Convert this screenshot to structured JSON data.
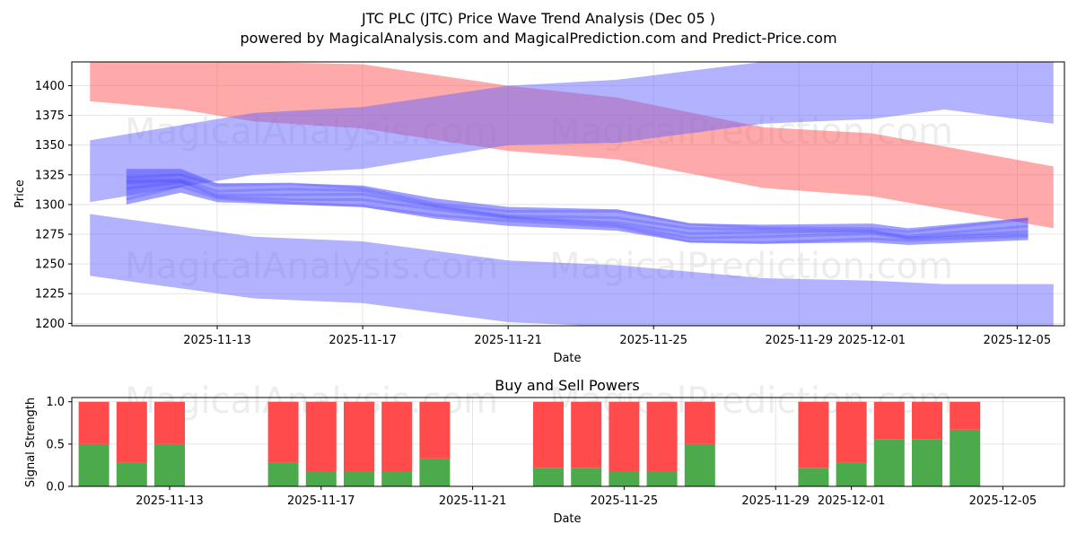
{
  "chart_data": [
    {
      "type": "area",
      "title": "JTC PLC (JTC) Price Wave Trend Analysis (Dec 05 )",
      "subtitle": "powered by MagicalAnalysis.com and MagicalPrediction.com and Predict-Price.com",
      "xlabel": "Date",
      "ylabel": "Price",
      "xlim": [
        "2025-11-09",
        "2025-12-06.3"
      ],
      "ylim": [
        1198,
        1420
      ],
      "x_ticks": [
        "2025-11-13",
        "2025-11-17",
        "2025-11-21",
        "2025-11-25",
        "2025-11-29",
        "2025-12-01",
        "2025-12-05"
      ],
      "y_ticks": [
        1200,
        1225,
        1250,
        1275,
        1300,
        1325,
        1350,
        1375,
        1400
      ],
      "grid": true,
      "watermarks": [
        "MagicalAnalysis.com",
        "MagicalPrediction.com",
        "MagicalAnalysis.com",
        "MagicalPrediction.com"
      ],
      "bands": [
        {
          "name": "red-downtrend",
          "color": "#ff5555",
          "opacity": 0.5,
          "x": [
            "2025-11-09.5",
            "2025-11-12",
            "2025-11-14",
            "2025-11-17",
            "2025-11-21",
            "2025-11-24",
            "2025-11-28",
            "2025-12-01",
            "2025-12-06"
          ],
          "upper": [
            1420,
            1420,
            1420,
            1418,
            1400,
            1390,
            1365,
            1360,
            1332
          ],
          "lower": [
            1387,
            1380,
            1370,
            1364,
            1345,
            1338,
            1314,
            1307,
            1280
          ]
        },
        {
          "name": "blue-upper-uptrend",
          "color": "#6666ff",
          "opacity": 0.5,
          "x": [
            "2025-11-09.5",
            "2025-11-14",
            "2025-11-17",
            "2025-11-21",
            "2025-11-24",
            "2025-11-28",
            "2025-12-01",
            "2025-12-03",
            "2025-12-06"
          ],
          "upper": [
            1354,
            1377,
            1382,
            1400,
            1405,
            1420,
            1420,
            1420,
            1420
          ],
          "lower": [
            1302,
            1325,
            1330,
            1350,
            1352,
            1368,
            1372,
            1380,
            1368
          ]
        },
        {
          "name": "blue-lower-downtrend",
          "color": "#6666ff",
          "opacity": 0.5,
          "x": [
            "2025-11-09.5",
            "2025-11-14",
            "2025-11-17",
            "2025-11-21",
            "2025-11-24",
            "2025-11-28",
            "2025-12-01",
            "2025-12-03",
            "2025-12-06"
          ],
          "upper": [
            1292,
            1273,
            1269,
            1253,
            1249,
            1238,
            1236,
            1233,
            1233
          ],
          "lower": [
            1240,
            1221,
            1217,
            1201,
            1197,
            1197,
            1197,
            1197,
            1197
          ]
        },
        {
          "name": "blue-core-wave",
          "color": "#5050ff",
          "opacity": 0.55,
          "x": [
            "2025-11-10.5",
            "2025-11-12",
            "2025-11-13",
            "2025-11-15",
            "2025-11-17",
            "2025-11-19",
            "2025-11-21",
            "2025-11-24",
            "2025-11-26",
            "2025-11-28",
            "2025-12-01",
            "2025-12-02",
            "2025-12-05.3"
          ],
          "upper": [
            1330,
            1330,
            1318,
            1318,
            1316,
            1305,
            1298,
            1296,
            1284,
            1283,
            1284,
            1280,
            1289
          ],
          "lower": [
            1300,
            1310,
            1302,
            1300,
            1298,
            1288,
            1282,
            1278,
            1268,
            1267,
            1268,
            1266,
            1270
          ]
        }
      ]
    },
    {
      "type": "bar",
      "title": "Buy and Sell Powers",
      "xlabel": "Date",
      "ylabel": "Signal Strength",
      "ylim": [
        0,
        1.05
      ],
      "y_ticks": [
        0.0,
        0.5,
        1.0
      ],
      "x_ticks": [
        "2025-11-13",
        "2025-11-17",
        "2025-11-21",
        "2025-11-25",
        "2025-11-29",
        "2025-12-01",
        "2025-12-05"
      ],
      "series": [
        {
          "name": "Buy",
          "color": "#4caa4c"
        },
        {
          "name": "Sell",
          "color": "#ff4b4b"
        }
      ],
      "dates": [
        "2025-11-11",
        "2025-11-12",
        "2025-11-13",
        "2025-11-16",
        "2025-11-17",
        "2025-11-18",
        "2025-11-19",
        "2025-11-20",
        "2025-11-23",
        "2025-11-24",
        "2025-11-25",
        "2025-11-26",
        "2025-11-27",
        "2025-11-30",
        "2025-12-01",
        "2025-12-02",
        "2025-12-03",
        "2025-12-04"
      ],
      "buy": [
        0.5,
        0.28,
        0.5,
        0.28,
        0.17,
        0.17,
        0.17,
        0.33,
        0.22,
        0.22,
        0.17,
        0.17,
        0.5,
        0.22,
        0.28,
        0.56,
        0.56,
        0.67
      ],
      "sell": [
        0.5,
        0.72,
        0.5,
        0.72,
        0.83,
        0.83,
        0.83,
        0.67,
        0.78,
        0.78,
        0.83,
        0.83,
        0.5,
        0.78,
        0.72,
        0.44,
        0.44,
        0.33
      ]
    }
  ]
}
